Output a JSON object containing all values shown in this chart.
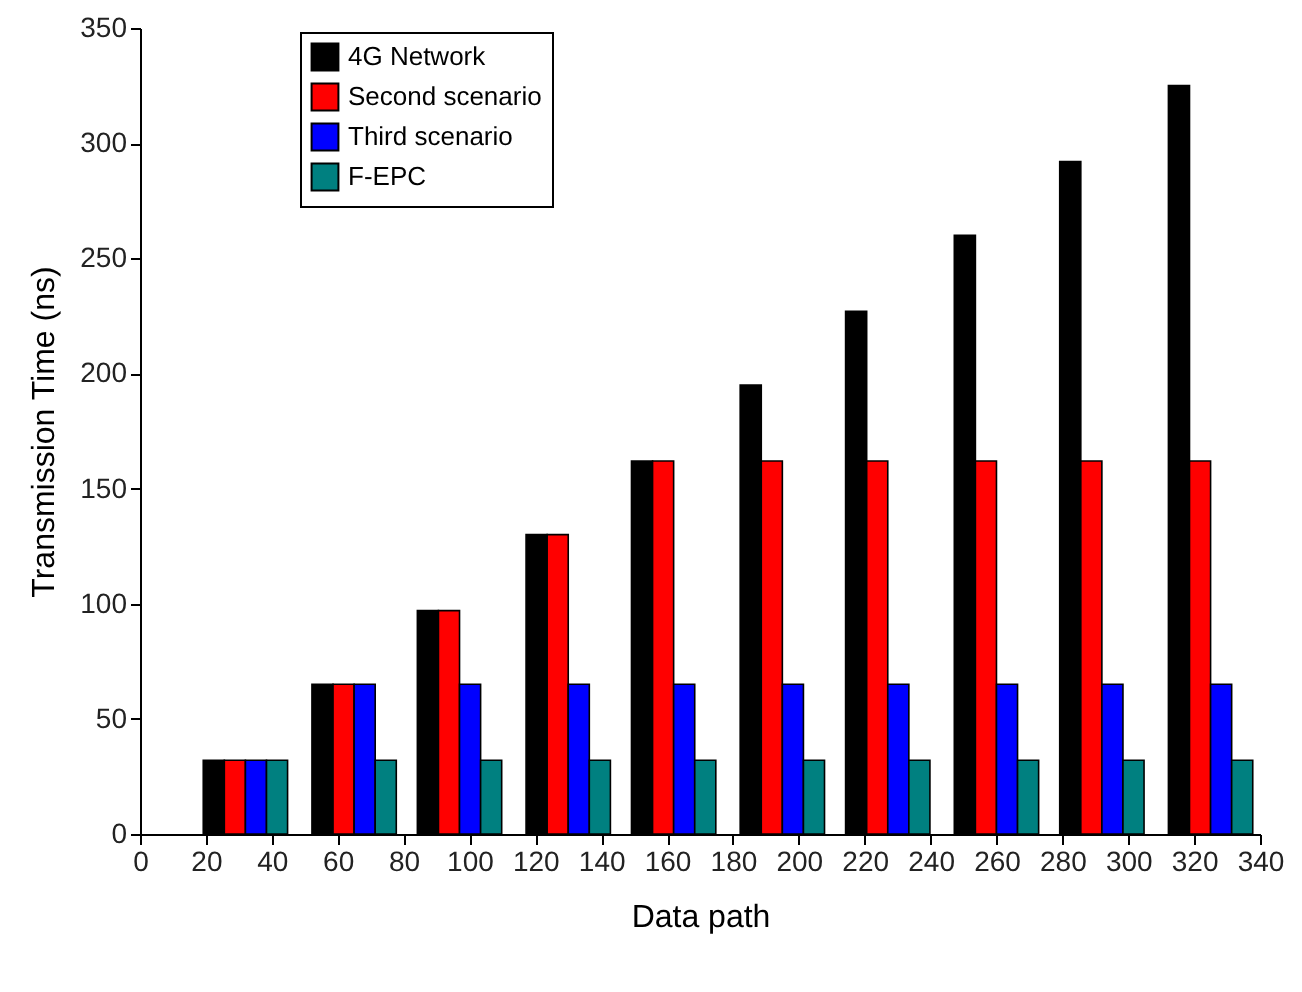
{
  "chart_data": {
    "type": "bar",
    "xlabel": "Data path",
    "ylabel": "Transmission Time (ns)",
    "x": [
      32,
      65,
      97,
      130,
      162,
      195,
      227,
      260,
      292,
      325
    ],
    "series": [
      {
        "name": "4G Network",
        "color": "#000000",
        "values": [
          32,
          65,
          97,
          130,
          162,
          195,
          227,
          260,
          292,
          325
        ]
      },
      {
        "name": "Second scenario",
        "color": "#ff0000",
        "values": [
          32,
          65,
          97,
          130,
          162,
          162,
          162,
          162,
          162,
          162
        ]
      },
      {
        "name": "Third scenario",
        "color": "#0000ff",
        "values": [
          32,
          65,
          65,
          65,
          65,
          65,
          65,
          65,
          65,
          65
        ]
      },
      {
        "name": "F-EPC",
        "color": "#008080",
        "values": [
          32,
          32,
          32,
          32,
          32,
          32,
          32,
          32,
          32,
          32
        ]
      }
    ],
    "xlim": [
      0,
      340
    ],
    "xticks": [
      0,
      20,
      40,
      60,
      80,
      100,
      120,
      140,
      160,
      180,
      200,
      220,
      240,
      260,
      280,
      300,
      320,
      340
    ],
    "ylim": [
      0,
      350
    ],
    "yticks": [
      0,
      50,
      100,
      150,
      200,
      250,
      300,
      350
    ],
    "grid": false,
    "legend": "top left"
  }
}
